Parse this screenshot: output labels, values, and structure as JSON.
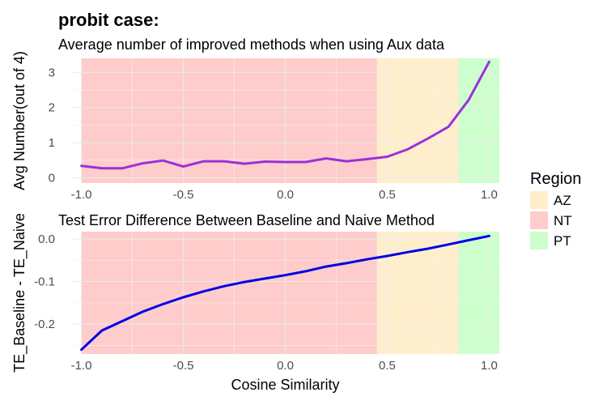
{
  "figure": {
    "title": "probit case:",
    "legend_title": "Region"
  },
  "regions": [
    {
      "name": "NT",
      "from": -1.0,
      "to": 0.45,
      "color": "#ffcccc"
    },
    {
      "name": "AZ",
      "from": 0.45,
      "to": 0.85,
      "color": "#ffeecc"
    },
    {
      "name": "PT",
      "from": 0.85,
      "to": 1.05,
      "color": "#ccffcc"
    }
  ],
  "legend": [
    {
      "label": "AZ",
      "color": "#ffeecc"
    },
    {
      "label": "NT",
      "color": "#ffcccc"
    },
    {
      "label": "PT",
      "color": "#ccffcc"
    }
  ],
  "chart_data": [
    {
      "type": "line",
      "title": "Average number of improved methods when using Aux data",
      "xlabel": "",
      "ylabel": "Avg Number(out of 4)",
      "xlim": [
        -1.05,
        1.05
      ],
      "ylim": [
        -0.15,
        3.4
      ],
      "xticks": [
        -1.0,
        -0.5,
        0.0,
        0.5,
        1.0
      ],
      "xtick_labels": [
        "-1.0",
        "-0.5",
        "0.0",
        "0.5",
        "1.0"
      ],
      "yticks": [
        0,
        1,
        2,
        3
      ],
      "ytick_labels": [
        "0",
        "1",
        "2",
        "3"
      ],
      "series": [
        {
          "name": "avg_improved",
          "color": "#9b30d9",
          "x": [
            -1.0,
            -0.9,
            -0.8,
            -0.7,
            -0.6,
            -0.5,
            -0.4,
            -0.3,
            -0.2,
            -0.1,
            0.0,
            0.1,
            0.2,
            0.3,
            0.4,
            0.5,
            0.6,
            0.7,
            0.8,
            0.9,
            1.0
          ],
          "y": [
            0.34,
            0.27,
            0.27,
            0.41,
            0.49,
            0.32,
            0.47,
            0.47,
            0.4,
            0.46,
            0.45,
            0.45,
            0.55,
            0.47,
            0.53,
            0.6,
            0.81,
            1.12,
            1.45,
            2.22,
            3.3
          ]
        }
      ]
    },
    {
      "type": "line",
      "title": "Test Error Difference Between Baseline and Naive Method",
      "xlabel": "Cosine Similarity",
      "ylabel": "TE_Baseline - TE_Naive",
      "xlim": [
        -1.05,
        1.05
      ],
      "ylim": [
        -0.27,
        0.017
      ],
      "xticks": [
        -1.0,
        -0.5,
        0.0,
        0.5,
        1.0
      ],
      "xtick_labels": [
        "-1.0",
        "-0.5",
        "0.0",
        "0.5",
        "1.0"
      ],
      "yticks": [
        0.0,
        -0.1,
        -0.2
      ],
      "ytick_labels": [
        "0.0",
        "-0.1",
        "-0.2"
      ],
      "series": [
        {
          "name": "te_diff",
          "color": "#0000e6",
          "x": [
            -1.0,
            -0.9,
            -0.8,
            -0.7,
            -0.6,
            -0.5,
            -0.4,
            -0.3,
            -0.2,
            -0.1,
            0.0,
            0.1,
            0.2,
            0.3,
            0.4,
            0.5,
            0.6,
            0.7,
            0.8,
            0.9,
            1.0
          ],
          "y": [
            -0.26,
            -0.215,
            -0.193,
            -0.171,
            -0.153,
            -0.137,
            -0.123,
            -0.111,
            -0.101,
            -0.093,
            -0.085,
            -0.076,
            -0.065,
            -0.057,
            -0.048,
            -0.04,
            -0.031,
            -0.023,
            -0.013,
            -0.003,
            0.007
          ]
        }
      ]
    }
  ]
}
